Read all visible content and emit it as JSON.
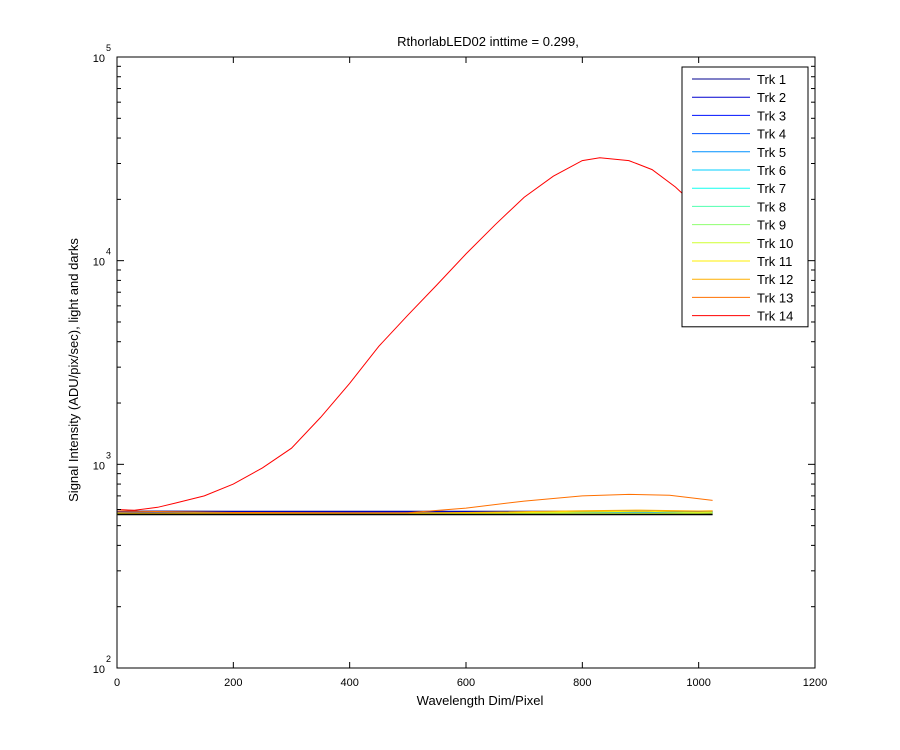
{
  "chart_data": {
    "type": "line",
    "title": "RthorlabLED02 inttime = 0.299,",
    "xlabel": "Wavelength Dim/Pixel",
    "ylabel": "Signal Intensity (ADU/pix/sec), light and darks",
    "xlim": [
      0,
      1200
    ],
    "ylim": [
      100,
      100000
    ],
    "yscale": "log",
    "x_ticks": [
      "0",
      "200",
      "400",
      "600",
      "800",
      "1000",
      "1200"
    ],
    "y_ticks": [
      {
        "base": "10",
        "exp": "2",
        "value": 100
      },
      {
        "base": "10",
        "exp": "3",
        "value": 1000
      },
      {
        "base": "10",
        "exp": "4",
        "value": 10000
      },
      {
        "base": "10",
        "exp": "5",
        "value": 100000
      }
    ],
    "legend_position": "top-right",
    "series": [
      {
        "name": "Trk 1",
        "color": "#00008f",
        "points": [
          [
            1,
            590
          ],
          [
            200,
            588
          ],
          [
            400,
            588
          ],
          [
            600,
            588
          ],
          [
            800,
            588
          ],
          [
            1000,
            588
          ],
          [
            1024,
            590
          ]
        ]
      },
      {
        "name": "Trk 2",
        "color": "#0000cf",
        "points": [
          [
            1,
            585
          ],
          [
            200,
            584
          ],
          [
            400,
            584
          ],
          [
            600,
            584
          ],
          [
            800,
            584
          ],
          [
            1000,
            584
          ],
          [
            1024,
            586
          ]
        ]
      },
      {
        "name": "Trk 3",
        "color": "#0010ff",
        "points": [
          [
            1,
            580
          ],
          [
            200,
            580
          ],
          [
            400,
            580
          ],
          [
            600,
            580
          ],
          [
            800,
            580
          ],
          [
            1000,
            580
          ],
          [
            1024,
            582
          ]
        ]
      },
      {
        "name": "Trk 4",
        "color": "#0050ff",
        "points": [
          [
            1,
            578
          ],
          [
            200,
            578
          ],
          [
            400,
            578
          ],
          [
            600,
            578
          ],
          [
            800,
            580
          ],
          [
            1000,
            580
          ],
          [
            1024,
            582
          ]
        ]
      },
      {
        "name": "Trk 5",
        "color": "#0090ff",
        "points": [
          [
            1,
            576
          ],
          [
            200,
            576
          ],
          [
            400,
            576
          ],
          [
            600,
            577
          ],
          [
            800,
            578
          ],
          [
            1000,
            578
          ],
          [
            1024,
            580
          ]
        ]
      },
      {
        "name": "Trk 6",
        "color": "#00cfff",
        "points": [
          [
            1,
            575
          ],
          [
            200,
            575
          ],
          [
            400,
            575
          ],
          [
            600,
            576
          ],
          [
            800,
            578
          ],
          [
            1000,
            577
          ],
          [
            1024,
            579
          ]
        ]
      },
      {
        "name": "Trk 7",
        "color": "#10ffef",
        "points": [
          [
            1,
            574
          ],
          [
            200,
            574
          ],
          [
            400,
            574
          ],
          [
            600,
            575
          ],
          [
            800,
            577
          ],
          [
            1000,
            576
          ],
          [
            1024,
            578
          ]
        ]
      },
      {
        "name": "Trk 8",
        "color": "#50ffaf",
        "points": [
          [
            1,
            573
          ],
          [
            200,
            573
          ],
          [
            400,
            573
          ],
          [
            600,
            574
          ],
          [
            800,
            576
          ],
          [
            1000,
            575
          ],
          [
            1024,
            577
          ]
        ]
      },
      {
        "name": "Trk 9",
        "color": "#8fff70",
        "points": [
          [
            1,
            572
          ],
          [
            200,
            572
          ],
          [
            400,
            572
          ],
          [
            600,
            574
          ],
          [
            800,
            576
          ],
          [
            1000,
            575
          ],
          [
            1024,
            576
          ]
        ]
      },
      {
        "name": "Trk 10",
        "color": "#cfff30",
        "points": [
          [
            1,
            571
          ],
          [
            200,
            571
          ],
          [
            400,
            571
          ],
          [
            600,
            573
          ],
          [
            800,
            576
          ],
          [
            1000,
            574
          ],
          [
            1024,
            575
          ]
        ]
      },
      {
        "name": "Trk 11",
        "color": "#ffef00",
        "points": [
          [
            1,
            575
          ],
          [
            200,
            572
          ],
          [
            400,
            572
          ],
          [
            600,
            576
          ],
          [
            800,
            585
          ],
          [
            900,
            588
          ],
          [
            1000,
            582
          ],
          [
            1024,
            584
          ]
        ]
      },
      {
        "name": "Trk 12",
        "color": "#ffaf00",
        "points": [
          [
            1,
            578
          ],
          [
            200,
            574
          ],
          [
            400,
            574
          ],
          [
            600,
            580
          ],
          [
            800,
            592
          ],
          [
            900,
            596
          ],
          [
            1000,
            590
          ],
          [
            1024,
            592
          ]
        ]
      },
      {
        "name": "Trk 13",
        "color": "#ff7000",
        "points": [
          [
            1,
            590
          ],
          [
            100,
            585
          ],
          [
            200,
            580
          ],
          [
            400,
            578
          ],
          [
            500,
            579
          ],
          [
            600,
            610
          ],
          [
            700,
            660
          ],
          [
            800,
            700
          ],
          [
            880,
            712
          ],
          [
            950,
            705
          ],
          [
            1024,
            665
          ]
        ]
      },
      {
        "name": "Trk 14",
        "color": "#ff0000",
        "points": [
          [
            1,
            600
          ],
          [
            30,
            595
          ],
          [
            70,
            615
          ],
          [
            100,
            645
          ],
          [
            150,
            700
          ],
          [
            200,
            800
          ],
          [
            250,
            960
          ],
          [
            300,
            1200
          ],
          [
            350,
            1700
          ],
          [
            400,
            2500
          ],
          [
            450,
            3800
          ],
          [
            500,
            5400
          ],
          [
            550,
            7600
          ],
          [
            600,
            10800
          ],
          [
            650,
            15000
          ],
          [
            700,
            20500
          ],
          [
            750,
            26000
          ],
          [
            800,
            31000
          ],
          [
            830,
            32000
          ],
          [
            880,
            31000
          ],
          [
            920,
            28000
          ],
          [
            960,
            23000
          ],
          [
            1000,
            18000
          ],
          [
            1024,
            14500
          ]
        ]
      },
      {
        "name": "",
        "color": "#000000",
        "points": [
          [
            1,
            570
          ],
          [
            200,
            569
          ],
          [
            400,
            569
          ],
          [
            600,
            569
          ],
          [
            800,
            569
          ],
          [
            1000,
            569
          ],
          [
            1024,
            570
          ]
        ]
      },
      {
        "name": "",
        "color": "#000000",
        "points": [
          [
            1,
            565
          ],
          [
            200,
            565
          ],
          [
            400,
            565
          ],
          [
            600,
            565
          ],
          [
            800,
            565
          ],
          [
            1000,
            565
          ],
          [
            1024,
            566
          ]
        ]
      }
    ]
  }
}
